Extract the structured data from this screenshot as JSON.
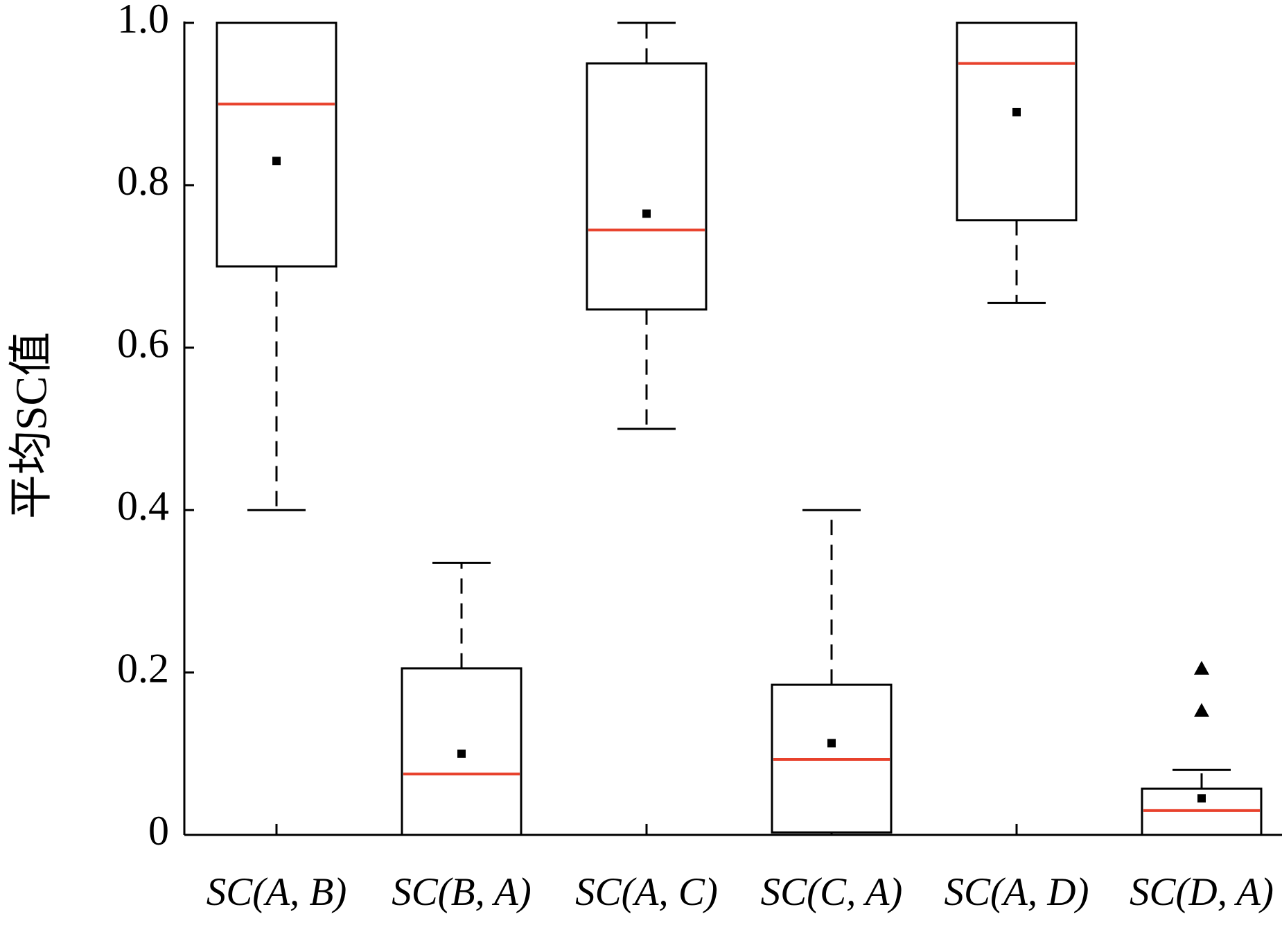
{
  "chart_data": {
    "type": "box",
    "y_label": "平均SC值",
    "categories": [
      "SC(A, B)",
      "SC(B, A)",
      "SC(A, C)",
      "SC(C, A)",
      "SC(A, D)",
      "SC(D, A)"
    ],
    "boxes": [
      {
        "whislo": 0.4,
        "q1": 0.7,
        "med": 0.9,
        "q3": 1.0,
        "whishi": 1.0,
        "mean": 0.83
      },
      {
        "whislo": 0,
        "q1": 0,
        "med": 0.075,
        "q3": 0.205,
        "whishi": 0.335,
        "mean": 0.1
      },
      {
        "whislo": 0.5,
        "q1": 0.647,
        "med": 0.745,
        "q3": 0.95,
        "whishi": 1.0,
        "mean": 0.765
      },
      {
        "whislo": 0,
        "q1": 0.003,
        "med": 0.093,
        "q3": 0.185,
        "whishi": 0.4,
        "mean": 0.113
      },
      {
        "whislo": 0.655,
        "q1": 0.757,
        "med": 0.95,
        "q3": 1.0,
        "whishi": 1.0,
        "mean": 0.89
      },
      {
        "whislo": 0,
        "q1": 0,
        "med": 0.03,
        "q3": 0.057,
        "whishi": 0.08,
        "mean": 0.045,
        "fliers": [
          0.205,
          0.153
        ]
      }
    ],
    "box_color": "#000000",
    "median_color": "#e8412c",
    "ylim": [
      0,
      1
    ],
    "yticks": [
      0,
      0.2,
      0.4,
      0.6,
      0.8,
      {
        "value": 1,
        "label": "1.0"
      }
    ]
  }
}
